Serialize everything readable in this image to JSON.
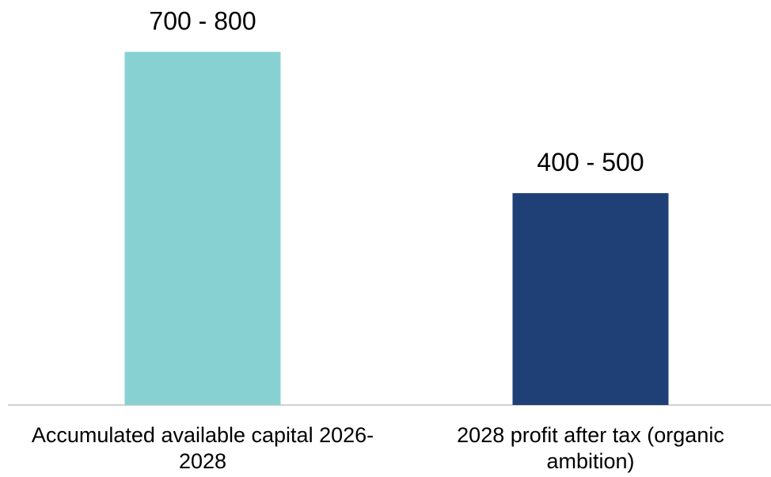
{
  "chart_data": {
    "type": "bar",
    "categories": [
      "Accumulated available capital 2026-2028",
      "2028 profit after tax (organic ambition)"
    ],
    "values": [
      750,
      450
    ],
    "value_labels": [
      "700 - 800",
      "400 - 500"
    ],
    "colors": [
      "#88d1d3",
      "#1f3f77"
    ],
    "ylim": [
      0,
      840
    ]
  }
}
